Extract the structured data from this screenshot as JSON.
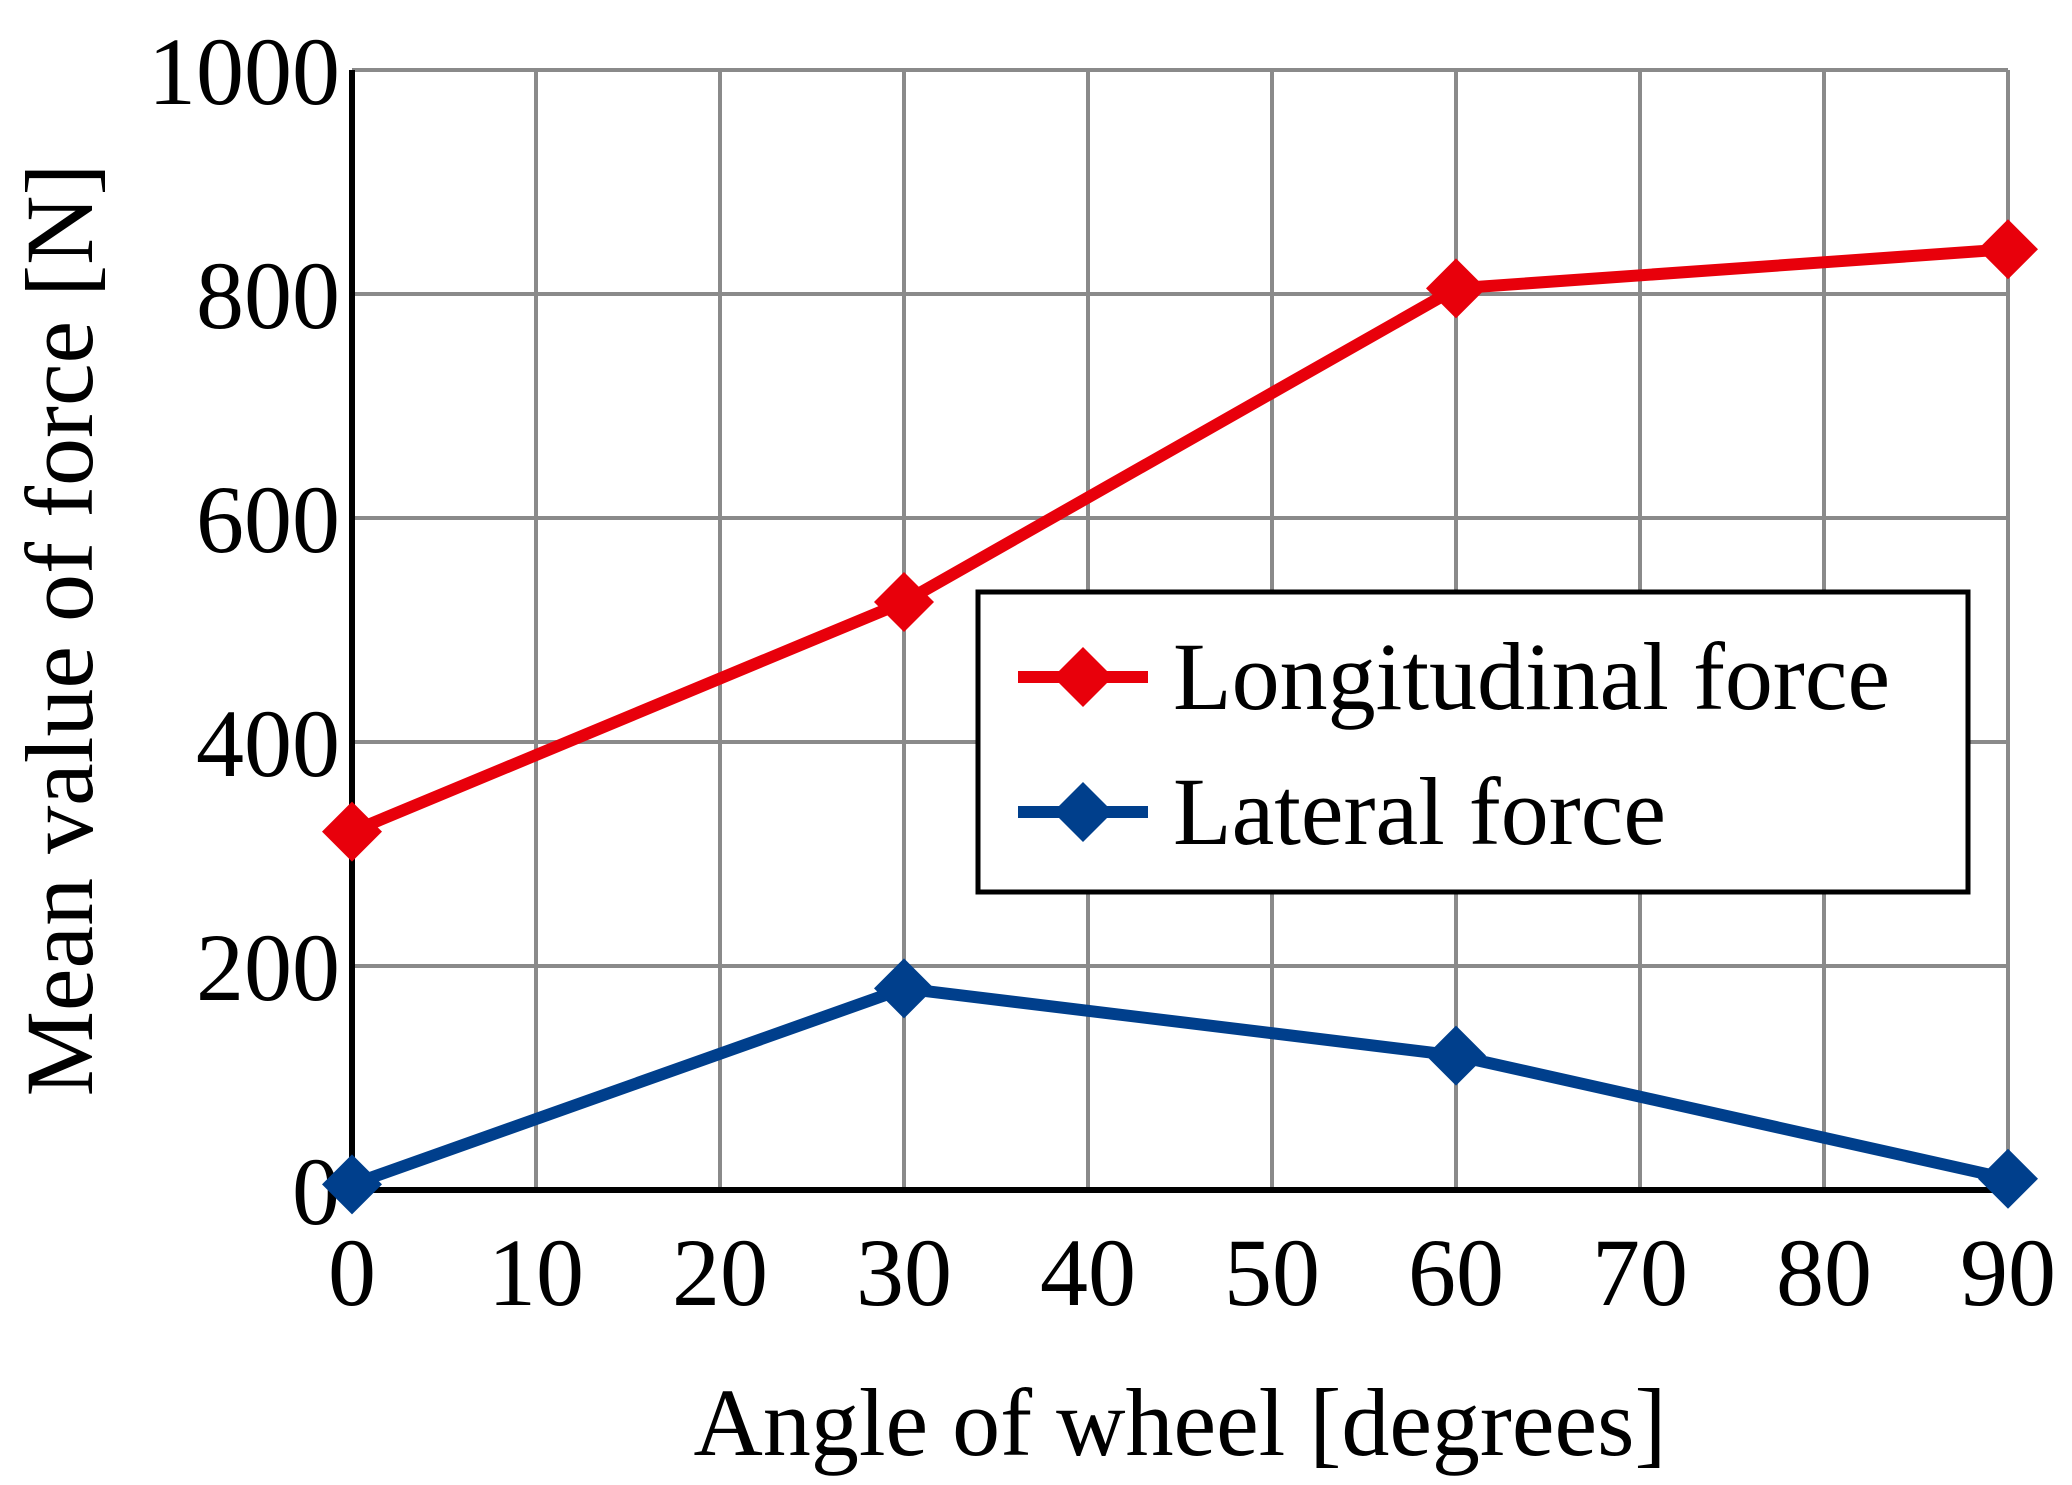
{
  "chart_data": {
    "type": "line",
    "title": "",
    "xlabel": "Angle of wheel [degrees]",
    "ylabel": "Mean value of force [N]",
    "xlim": [
      0,
      90
    ],
    "ylim": [
      0,
      1000
    ],
    "x_ticks": [
      "0",
      "10",
      "20",
      "30",
      "40",
      "50",
      "60",
      "70",
      "80",
      "90"
    ],
    "y_ticks": [
      "0",
      "200",
      "400",
      "600",
      "800",
      "1000"
    ],
    "grid": true,
    "legend_position": "center-right",
    "series": [
      {
        "name": "Longitudinal force",
        "color": "#e8000b",
        "marker": "diamond",
        "x": [
          0,
          30,
          60,
          90
        ],
        "values": [
          320,
          525,
          805,
          840
        ]
      },
      {
        "name": "Lateral force",
        "color": "#003f8c",
        "marker": "diamond",
        "x": [
          0,
          30,
          60,
          90
        ],
        "values": [
          5,
          180,
          120,
          10
        ]
      }
    ]
  }
}
